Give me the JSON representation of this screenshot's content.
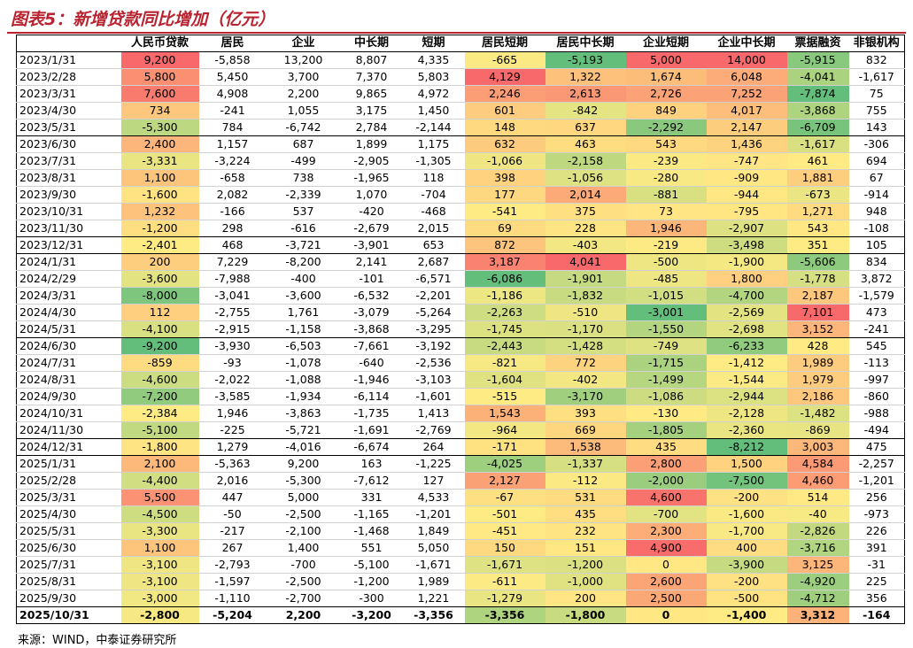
{
  "title": "图表5：新增贷款同比增加（亿元）",
  "source": "来源：WIND，中泰证券研究所",
  "chart_data": {
    "type": "table",
    "columns": [
      "",
      "人民币贷款",
      "居民",
      "企业",
      "中长期",
      "短期",
      "居民短期",
      "居民中长期",
      "企业短期",
      "企业中长期",
      "票据融资",
      "非银机构"
    ],
    "colored_columns": [
      1,
      6,
      7,
      8,
      9,
      10
    ],
    "scale_colors": {
      "low": "#63be7b",
      "mid": "#ffeb84",
      "high": "#f8696b"
    },
    "rows": [
      [
        "2023/1/31",
        "9,200",
        "-5,858",
        "13,200",
        "8,807",
        "4,335",
        "-665",
        "-5,193",
        "5,000",
        "14,000",
        "-5,915",
        "832"
      ],
      [
        "2023/2/28",
        "5,800",
        "5,450",
        "3,700",
        "7,370",
        "5,803",
        "4,129",
        "1,322",
        "1,674",
        "6,048",
        "-4,041",
        "-1,617"
      ],
      [
        "2023/3/31",
        "7,600",
        "4,908",
        "2,200",
        "9,865",
        "4,972",
        "2,246",
        "2,613",
        "2,726",
        "7,252",
        "-7,874",
        "75"
      ],
      [
        "2023/4/30",
        "734",
        "-241",
        "1,055",
        "3,175",
        "1,450",
        "601",
        "-842",
        "849",
        "4,017",
        "-3,868",
        "755"
      ],
      [
        "2023/5/31",
        "-5,300",
        "784",
        "-6,742",
        "2,784",
        "-2,144",
        "148",
        "637",
        "-2,292",
        "2,147",
        "-6,709",
        "143"
      ],
      [
        "2023/6/30",
        "2,400",
        "1,157",
        "687",
        "1,899",
        "1,175",
        "632",
        "463",
        "543",
        "1,436",
        "-1,617",
        "-306"
      ],
      [
        "2023/7/31",
        "-3,331",
        "-3,224",
        "-499",
        "-2,905",
        "-1,305",
        "-1,066",
        "-2,158",
        "-239",
        "-747",
        "461",
        "694"
      ],
      [
        "2023/8/31",
        "1,100",
        "-658",
        "738",
        "-1,965",
        "118",
        "398",
        "-1,056",
        "-280",
        "-909",
        "1,881",
        "67"
      ],
      [
        "2023/9/30",
        "-1,600",
        "2,082",
        "-2,339",
        "1,070",
        "-704",
        "177",
        "2,014",
        "-881",
        "-944",
        "-673",
        "-914"
      ],
      [
        "2023/10/31",
        "1,232",
        "-166",
        "537",
        "-420",
        "-468",
        "-541",
        "375",
        "73",
        "-795",
        "1,271",
        "948"
      ],
      [
        "2023/11/30",
        "-1,200",
        "298",
        "-616",
        "-2,679",
        "2,015",
        "69",
        "228",
        "1,946",
        "-2,907",
        "543",
        "-108"
      ],
      [
        "2023/12/31",
        "-2,401",
        "468",
        "-3,721",
        "-3,901",
        "653",
        "872",
        "-403",
        "-219",
        "-3,498",
        "351",
        "105"
      ],
      [
        "2024/1/31",
        "200",
        "7,229",
        "-8,200",
        "2,141",
        "2,687",
        "3,187",
        "4,041",
        "-500",
        "-1,900",
        "-5,606",
        "834"
      ],
      [
        "2024/2/29",
        "-3,600",
        "-7,988",
        "-400",
        "-101",
        "-6,571",
        "-6,086",
        "-1,901",
        "-485",
        "1,800",
        "-1,778",
        "3,872"
      ],
      [
        "2024/3/31",
        "-8,000",
        "-3,041",
        "-3,600",
        "-6,532",
        "-2,201",
        "-1,186",
        "-1,832",
        "-1,015",
        "-4,700",
        "2,187",
        "-1,579"
      ],
      [
        "2024/4/30",
        "112",
        "-2,755",
        "1,761",
        "-3,079",
        "-5,264",
        "-2,263",
        "-510",
        "-3,001",
        "-2,569",
        "7,101",
        "473"
      ],
      [
        "2024/5/31",
        "-4,100",
        "-2,915",
        "-1,158",
        "-3,868",
        "-3,295",
        "-1,745",
        "-1,170",
        "-1,550",
        "-2,698",
        "3,152",
        "-241"
      ],
      [
        "2024/6/30",
        "-9,200",
        "-3,930",
        "-6,503",
        "-7,661",
        "-3,192",
        "-2,443",
        "-1,428",
        "-749",
        "-6,233",
        "428",
        "545"
      ],
      [
        "2024/7/31",
        "-859",
        "-93",
        "-1,078",
        "-640",
        "-2,536",
        "-821",
        "772",
        "-1,715",
        "-1,412",
        "1,989",
        "-113"
      ],
      [
        "2024/8/31",
        "-4,600",
        "-2,022",
        "-1,088",
        "-1,946",
        "-3,103",
        "-1,604",
        "-402",
        "-1,499",
        "-1,544",
        "1,979",
        "-997"
      ],
      [
        "2024/9/30",
        "-7,200",
        "-3,585",
        "-1,934",
        "-6,114",
        "-1,601",
        "-515",
        "-3,170",
        "-1,086",
        "-2,944",
        "2,186",
        "-860"
      ],
      [
        "2024/10/31",
        "-2,384",
        "1,946",
        "-3,863",
        "-1,735",
        "1,413",
        "1,543",
        "393",
        "-130",
        "-2,128",
        "-1,482",
        "-988"
      ],
      [
        "2024/11/30",
        "-5,100",
        "-225",
        "-5,721",
        "-1,691",
        "-2,769",
        "-964",
        "669",
        "-1,805",
        "-2,360",
        "-869",
        "-494"
      ],
      [
        "2024/12/31",
        "-1,800",
        "1,279",
        "-4,016",
        "-6,674",
        "264",
        "-171",
        "1,538",
        "435",
        "-8,212",
        "3,003",
        "475"
      ],
      [
        "2025/1/31",
        "2,100",
        "-5,363",
        "9,200",
        "163",
        "-1,225",
        "-4,025",
        "-1,337",
        "2,800",
        "1,500",
        "4,584",
        "-2,257"
      ],
      [
        "2025/2/28",
        "-4,400",
        "2,016",
        "-5,300",
        "-7,612",
        "127",
        "2,127",
        "-112",
        "-2,000",
        "-7,500",
        "4,460",
        "-1,201"
      ],
      [
        "2025/3/31",
        "5,500",
        "447",
        "5,000",
        "331",
        "4,533",
        "-67",
        "531",
        "4,600",
        "-200",
        "514",
        "256"
      ],
      [
        "2025/4/30",
        "-4,500",
        "-50",
        "-2,500",
        "-1,165",
        "-1,201",
        "-501",
        "435",
        "-700",
        "-1,600",
        "-40",
        "-973"
      ],
      [
        "2025/5/31",
        "-3,300",
        "-217",
        "-2,100",
        "-1,468",
        "1,849",
        "-451",
        "232",
        "2,300",
        "-1,700",
        "-2,826",
        "226"
      ],
      [
        "2025/6/30",
        "1,100",
        "267",
        "1,400",
        "551",
        "5,050",
        "150",
        "151",
        "4,900",
        "400",
        "-3,716",
        "391"
      ],
      [
        "2025/7/31",
        "-3,100",
        "-2,793",
        "-700",
        "-5,100",
        "-1,671",
        "-1,671",
        "-1,200",
        "0",
        "-3,900",
        "3,125",
        "-31"
      ],
      [
        "2025/8/31",
        "-3,100",
        "-1,597",
        "-2,500",
        "-1,200",
        "1,989",
        "-611",
        "-1,000",
        "2,600",
        "-200",
        "-4,920",
        "225"
      ],
      [
        "2025/9/30",
        "-3,000",
        "-1,110",
        "-2,700",
        "-300",
        "1,221",
        "-1,279",
        "200",
        "2,500",
        "-500",
        "-4,712",
        "356"
      ],
      [
        "2025/10/31",
        "-2,800",
        "-5,204",
        "2,200",
        "-3,200",
        "-3,356",
        "-3,356",
        "-1,800",
        "0",
        "-1,400",
        "3,312",
        "-164"
      ]
    ],
    "separator_after_rows": [
      4,
      10,
      11,
      16,
      22,
      23,
      32
    ]
  }
}
